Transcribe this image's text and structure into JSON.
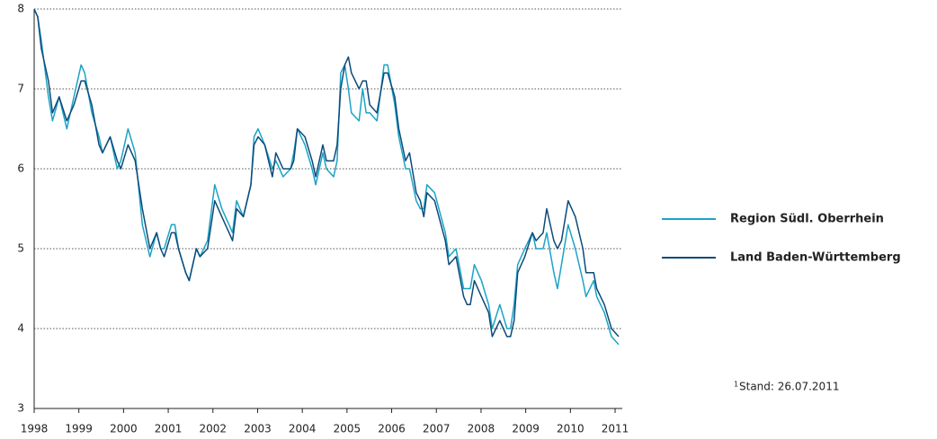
{
  "chart_data": {
    "type": "line",
    "x": [
      1998.0,
      1998.08,
      1998.16,
      1998.32,
      1998.41,
      1998.56,
      1998.73,
      1998.89,
      1999.05,
      1999.13,
      1999.29,
      1999.45,
      1999.53,
      1999.7,
      1999.86,
      1999.94,
      2000.1,
      2000.26,
      2000.42,
      2000.59,
      2000.74,
      2000.83,
      2000.91,
      2001.07,
      2001.15,
      2001.23,
      2001.39,
      2001.47,
      2001.63,
      2001.71,
      2001.88,
      2002.04,
      2002.2,
      2002.36,
      2002.44,
      2002.53,
      2002.68,
      2002.85,
      2002.92,
      2003.01,
      2003.16,
      2003.33,
      2003.41,
      2003.57,
      2003.74,
      2003.81,
      2003.89,
      2004.06,
      2004.22,
      2004.3,
      2004.46,
      2004.54,
      2004.7,
      2004.78,
      2004.86,
      2004.95,
      2005.03,
      2005.1,
      2005.27,
      2005.35,
      2005.43,
      2005.51,
      2005.67,
      2005.83,
      2005.91,
      2006.07,
      2006.16,
      2006.31,
      2006.4,
      2006.55,
      2006.64,
      2006.72,
      2006.79,
      2006.96,
      2007.2,
      2007.28,
      2007.44,
      2007.61,
      2007.69,
      2007.76,
      2007.85,
      2008.01,
      2008.17,
      2008.25,
      2008.42,
      2008.58,
      2008.66,
      2008.74,
      2008.82,
      2008.98,
      2009.15,
      2009.23,
      2009.39,
      2009.47,
      2009.63,
      2009.71,
      2009.8,
      2009.95,
      2010.11,
      2010.28,
      2010.35,
      2010.52,
      2010.59,
      2010.76,
      2010.92,
      2011.08
    ],
    "series": [
      {
        "name": "Region Südl. Oberrhein",
        "color": "#1ba3c6",
        "values": [
          8.0,
          7.9,
          7.6,
          6.9,
          6.6,
          6.9,
          6.5,
          6.9,
          7.3,
          7.2,
          6.7,
          6.4,
          6.2,
          6.4,
          6.0,
          6.1,
          6.5,
          6.2,
          5.3,
          4.9,
          5.2,
          5.0,
          5.0,
          5.3,
          5.3,
          5.0,
          4.7,
          4.6,
          5.0,
          4.9,
          5.1,
          5.8,
          5.5,
          5.3,
          5.2,
          5.6,
          5.4,
          5.8,
          6.4,
          6.5,
          6.3,
          6.0,
          6.1,
          5.9,
          6.0,
          6.2,
          6.5,
          6.3,
          6.0,
          5.8,
          6.2,
          6.0,
          5.9,
          6.1,
          7.2,
          7.3,
          7.0,
          6.7,
          6.6,
          7.0,
          6.7,
          6.7,
          6.6,
          7.3,
          7.3,
          6.8,
          6.4,
          6.0,
          6.0,
          5.6,
          5.5,
          5.5,
          5.8,
          5.7,
          5.2,
          4.9,
          5.0,
          4.5,
          4.5,
          4.5,
          4.8,
          4.6,
          4.3,
          4.0,
          4.3,
          4.0,
          4.0,
          4.3,
          4.8,
          5.0,
          5.2,
          5.0,
          5.0,
          5.2,
          4.7,
          4.5,
          4.8,
          5.3,
          5.0,
          4.6,
          4.4,
          4.6,
          4.4,
          4.2,
          3.9,
          3.8
        ]
      },
      {
        "name": "Land Baden-Württemberg",
        "color": "#0d4a7a",
        "values": [
          8.0,
          7.9,
          7.5,
          7.1,
          6.7,
          6.9,
          6.6,
          6.8,
          7.1,
          7.1,
          6.8,
          6.3,
          6.2,
          6.4,
          6.1,
          6.0,
          6.3,
          6.1,
          5.5,
          5.0,
          5.2,
          5.0,
          4.9,
          5.2,
          5.2,
          5.0,
          4.7,
          4.6,
          5.0,
          4.9,
          5.0,
          5.6,
          5.4,
          5.2,
          5.1,
          5.5,
          5.4,
          5.8,
          6.3,
          6.4,
          6.3,
          5.9,
          6.2,
          6.0,
          6.0,
          6.1,
          6.5,
          6.4,
          6.1,
          5.9,
          6.3,
          6.1,
          6.1,
          6.3,
          7.0,
          7.3,
          7.4,
          7.2,
          7.0,
          7.1,
          7.1,
          6.8,
          6.7,
          7.2,
          7.2,
          6.9,
          6.5,
          6.1,
          6.2,
          5.7,
          5.6,
          5.4,
          5.7,
          5.6,
          5.1,
          4.8,
          4.9,
          4.4,
          4.3,
          4.3,
          4.6,
          4.4,
          4.2,
          3.9,
          4.1,
          3.9,
          3.9,
          4.1,
          4.7,
          4.9,
          5.2,
          5.1,
          5.2,
          5.5,
          5.1,
          5.0,
          5.1,
          5.6,
          5.4,
          5.0,
          4.7,
          4.7,
          4.5,
          4.3,
          4.0,
          3.9
        ]
      }
    ],
    "xlim": [
      1998,
      2011.08
    ],
    "xticks": [
      1998,
      1999,
      2000,
      2001,
      2002,
      2003,
      2004,
      2005,
      2006,
      2007,
      2008,
      2009,
      2010,
      2011
    ],
    "ylim": [
      3,
      8
    ],
    "yticks": [
      3,
      4,
      5,
      6,
      7,
      8
    ],
    "grid": true,
    "legend": "right",
    "footnote": {
      "marker": "1",
      "text": "Stand: 26.07.2011"
    }
  }
}
